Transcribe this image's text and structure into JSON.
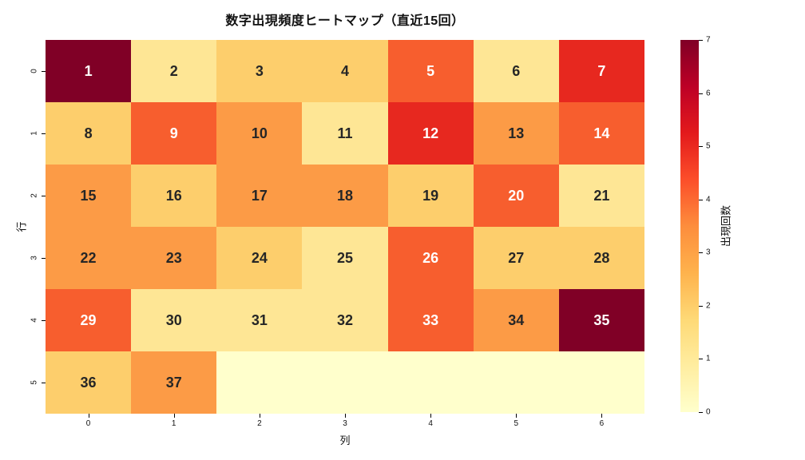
{
  "title": "数字出現頻度ヒートマップ（直近15回）",
  "chart_data": {
    "type": "heatmap",
    "title": "数字出現頻度ヒートマップ（直近15回）",
    "xlabel": "列",
    "ylabel": "行",
    "colorbar_label": "出現回数",
    "colormap": "YlOrRd",
    "vmin": 0,
    "vmax": 7,
    "x_tick_labels": [
      "0",
      "1",
      "2",
      "3",
      "4",
      "5",
      "6"
    ],
    "y_tick_labels": [
      "0",
      "1",
      "2",
      "3",
      "4",
      "5"
    ],
    "colorbar_tick_labels": [
      "0",
      "1",
      "2",
      "3",
      "4",
      "5",
      "6",
      "7"
    ],
    "rows": [
      [
        {
          "label": "1",
          "value": 7
        },
        {
          "label": "2",
          "value": 1
        },
        {
          "label": "3",
          "value": 2
        },
        {
          "label": "4",
          "value": 2
        },
        {
          "label": "5",
          "value": 4
        },
        {
          "label": "6",
          "value": 1
        },
        {
          "label": "7",
          "value": 5
        }
      ],
      [
        {
          "label": "8",
          "value": 2
        },
        {
          "label": "9",
          "value": 4
        },
        {
          "label": "10",
          "value": 3
        },
        {
          "label": "11",
          "value": 1
        },
        {
          "label": "12",
          "value": 5
        },
        {
          "label": "13",
          "value": 3
        },
        {
          "label": "14",
          "value": 4
        }
      ],
      [
        {
          "label": "15",
          "value": 3
        },
        {
          "label": "16",
          "value": 2
        },
        {
          "label": "17",
          "value": 3
        },
        {
          "label": "18",
          "value": 3
        },
        {
          "label": "19",
          "value": 2
        },
        {
          "label": "20",
          "value": 4
        },
        {
          "label": "21",
          "value": 1
        }
      ],
      [
        {
          "label": "22",
          "value": 3
        },
        {
          "label": "23",
          "value": 3
        },
        {
          "label": "24",
          "value": 2
        },
        {
          "label": "25",
          "value": 1
        },
        {
          "label": "26",
          "value": 4
        },
        {
          "label": "27",
          "value": 2
        },
        {
          "label": "28",
          "value": 2
        }
      ],
      [
        {
          "label": "29",
          "value": 4
        },
        {
          "label": "30",
          "value": 1
        },
        {
          "label": "31",
          "value": 1
        },
        {
          "label": "32",
          "value": 1
        },
        {
          "label": "33",
          "value": 4
        },
        {
          "label": "34",
          "value": 3
        },
        {
          "label": "35",
          "value": 7
        }
      ],
      [
        {
          "label": "36",
          "value": 2
        },
        {
          "label": "37",
          "value": 3
        },
        {
          "label": "",
          "value": 0
        },
        {
          "label": "",
          "value": 0
        },
        {
          "label": "",
          "value": 0
        },
        {
          "label": "",
          "value": 0
        },
        {
          "label": "",
          "value": 0
        }
      ]
    ],
    "palette": {
      "0": "#FFFFCC",
      "1": "#FEE695",
      "2": "#FDCE6C",
      "3": "#FC9B46",
      "4": "#F75E2E",
      "5": "#E7281F",
      "6": "#C00424",
      "7": "#800026"
    },
    "colormap_stops": [
      "#FFFFCC",
      "#FFEDA0",
      "#FED976",
      "#FEB24C",
      "#FD8D3C",
      "#FC4E2A",
      "#E31A1C",
      "#BD0026",
      "#800026"
    ],
    "annot_color_dark": "#262626",
    "annot_color_light": "#FFFFFF",
    "white_text_min_value": 4
  }
}
